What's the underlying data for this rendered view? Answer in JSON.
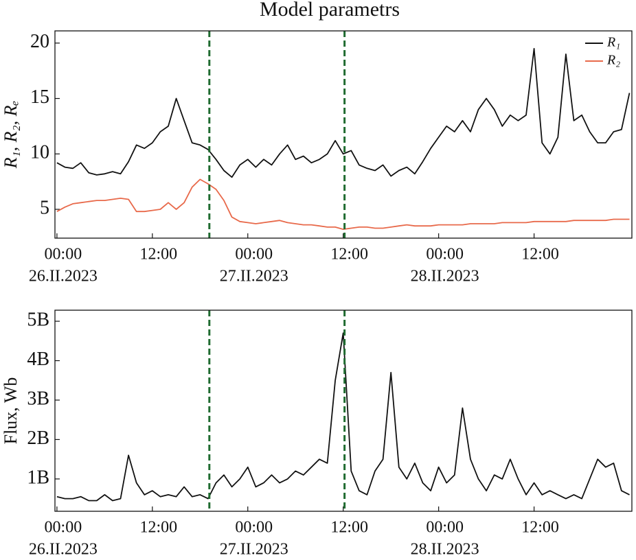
{
  "title": "Model parametrs",
  "chart_data": [
    {
      "type": "line",
      "ylabel": "R₁, R₂, Rₑ",
      "legend": "upper right",
      "xlim": [
        "2023-02-25T23:45",
        "2023-03-01T00:18"
      ],
      "xticks": [
        {
          "value": "2023-02-26T00:00",
          "label": "00:00",
          "date": "26.II.2023"
        },
        {
          "value": "2023-02-26T12:00",
          "label": "12:00"
        },
        {
          "value": "2023-02-27T00:00",
          "label": "00:00",
          "date": "27.II.2023"
        },
        {
          "value": "2023-02-27T12:00",
          "label": "12:00"
        },
        {
          "value": "2023-02-28T00:00",
          "label": "00:00",
          "date": "28.II.2023"
        },
        {
          "value": "2023-02-28T12:00",
          "label": "12:00"
        }
      ],
      "ylim": [
        2.4,
        21.1
      ],
      "yticks": [
        5,
        10,
        15,
        20
      ],
      "vlines": [
        {
          "value": "2023-02-26T19:10",
          "color": "#1f6b30"
        },
        {
          "value": "2023-02-27T12:10",
          "color": "#1f6b30"
        }
      ],
      "x": [
        "2023-02-26T00:00",
        "2023-02-26T01:00",
        "2023-02-26T02:00",
        "2023-02-26T03:00",
        "2023-02-26T04:00",
        "2023-02-26T05:00",
        "2023-02-26T06:00",
        "2023-02-26T07:00",
        "2023-02-26T08:00",
        "2023-02-26T09:00",
        "2023-02-26T10:00",
        "2023-02-26T11:00",
        "2023-02-26T12:00",
        "2023-02-26T13:00",
        "2023-02-26T14:00",
        "2023-02-26T15:00",
        "2023-02-26T16:00",
        "2023-02-26T17:00",
        "2023-02-26T18:00",
        "2023-02-26T19:00",
        "2023-02-26T20:00",
        "2023-02-26T21:00",
        "2023-02-26T22:00",
        "2023-02-26T23:00",
        "2023-02-27T00:00",
        "2023-02-27T01:00",
        "2023-02-27T02:00",
        "2023-02-27T03:00",
        "2023-02-27T04:00",
        "2023-02-27T05:00",
        "2023-02-27T06:00",
        "2023-02-27T07:00",
        "2023-02-27T08:00",
        "2023-02-27T09:00",
        "2023-02-27T10:00",
        "2023-02-27T11:00",
        "2023-02-27T12:00",
        "2023-02-27T13:00",
        "2023-02-27T14:00",
        "2023-02-27T15:00",
        "2023-02-27T16:00",
        "2023-02-27T17:00",
        "2023-02-27T18:00",
        "2023-02-27T19:00",
        "2023-02-27T20:00",
        "2023-02-27T21:00",
        "2023-02-27T22:00",
        "2023-02-27T23:00",
        "2023-02-28T00:00",
        "2023-02-28T01:00",
        "2023-02-28T02:00",
        "2023-02-28T03:00",
        "2023-02-28T04:00",
        "2023-02-28T05:00",
        "2023-02-28T06:00",
        "2023-02-28T07:00",
        "2023-02-28T08:00",
        "2023-02-28T09:00",
        "2023-02-28T10:00",
        "2023-02-28T11:00",
        "2023-02-28T12:00",
        "2023-02-28T13:00",
        "2023-02-28T14:00",
        "2023-02-28T15:00",
        "2023-02-28T16:00",
        "2023-02-28T17:00",
        "2023-02-28T18:00",
        "2023-02-28T19:00",
        "2023-02-28T20:00",
        "2023-02-28T21:00",
        "2023-02-28T22:00",
        "2023-02-28T23:00",
        "2023-03-01T00:00"
      ],
      "series": [
        {
          "name": "R₁",
          "color": "#111111",
          "values": [
            9.2,
            8.8,
            8.7,
            9.2,
            8.3,
            8.1,
            8.2,
            8.4,
            8.2,
            9.3,
            10.8,
            10.5,
            11.0,
            12.0,
            12.5,
            15.0,
            13.0,
            11.0,
            10.8,
            10.4,
            9.5,
            8.5,
            7.9,
            9.0,
            9.5,
            8.8,
            9.5,
            9.0,
            10.0,
            10.8,
            9.5,
            9.8,
            9.2,
            9.5,
            10.0,
            11.2,
            10.0,
            10.3,
            9.0,
            8.7,
            8.5,
            9.0,
            8.0,
            8.5,
            8.8,
            8.2,
            9.3,
            10.5,
            11.5,
            12.5,
            12.0,
            13.0,
            12.0,
            14.0,
            15.0,
            14.0,
            12.5,
            13.5,
            13.0,
            13.5,
            19.5,
            11.0,
            10.0,
            11.5,
            19.0,
            13.0,
            13.5,
            12.0,
            11.0,
            11.0,
            12.0,
            12.2,
            15.5
          ]
        },
        {
          "name": "R₂",
          "color": "#e8694a",
          "values": [
            4.8,
            5.2,
            5.5,
            5.6,
            5.7,
            5.8,
            5.8,
            5.9,
            6.0,
            5.9,
            4.8,
            4.8,
            4.9,
            5.0,
            5.6,
            5.0,
            5.6,
            7.0,
            7.7,
            7.3,
            6.8,
            5.8,
            4.3,
            3.9,
            3.8,
            3.7,
            3.8,
            3.9,
            4.0,
            3.8,
            3.7,
            3.6,
            3.6,
            3.5,
            3.4,
            3.4,
            3.2,
            3.3,
            3.4,
            3.4,
            3.3,
            3.3,
            3.4,
            3.5,
            3.6,
            3.5,
            3.5,
            3.5,
            3.6,
            3.6,
            3.6,
            3.6,
            3.7,
            3.7,
            3.7,
            3.7,
            3.8,
            3.8,
            3.8,
            3.8,
            3.9,
            3.9,
            3.9,
            3.9,
            3.9,
            4.0,
            4.0,
            4.0,
            4.0,
            4.0,
            4.1,
            4.1,
            4.1
          ]
        }
      ]
    },
    {
      "type": "line",
      "ylabel": "Flux, Wb",
      "color": "#111111",
      "xlim": [
        "2023-02-25T23:45",
        "2023-03-01T00:18"
      ],
      "xticks": [
        {
          "value": "2023-02-26T00:00",
          "label": "00:00",
          "date": "26.II.2023"
        },
        {
          "value": "2023-02-26T12:00",
          "label": "12:00"
        },
        {
          "value": "2023-02-27T00:00",
          "label": "00:00",
          "date": "27.II.2023"
        },
        {
          "value": "2023-02-27T12:00",
          "label": "12:00"
        },
        {
          "value": "2023-02-28T00:00",
          "label": "00:00",
          "date": "28.II.2023"
        },
        {
          "value": "2023-02-28T12:00",
          "label": "12:00"
        }
      ],
      "ylim": [
        180000000,
        5280000000
      ],
      "yticks": [
        {
          "value": 1000000000,
          "label": "1B"
        },
        {
          "value": 2000000000,
          "label": "2B"
        },
        {
          "value": 3000000000,
          "label": "3B"
        },
        {
          "value": 4000000000,
          "label": "4B"
        },
        {
          "value": 5000000000,
          "label": "5B"
        }
      ],
      "vlines": [
        {
          "value": "2023-02-26T19:10",
          "color": "#1f6b30"
        },
        {
          "value": "2023-02-27T12:10",
          "color": "#1f6b30"
        }
      ],
      "x": [
        "2023-02-26T00:00",
        "2023-02-26T01:00",
        "2023-02-26T02:00",
        "2023-02-26T03:00",
        "2023-02-26T04:00",
        "2023-02-26T05:00",
        "2023-02-26T06:00",
        "2023-02-26T07:00",
        "2023-02-26T08:00",
        "2023-02-26T09:00",
        "2023-02-26T10:00",
        "2023-02-26T11:00",
        "2023-02-26T12:00",
        "2023-02-26T13:00",
        "2023-02-26T14:00",
        "2023-02-26T15:00",
        "2023-02-26T16:00",
        "2023-02-26T17:00",
        "2023-02-26T18:00",
        "2023-02-26T19:00",
        "2023-02-26T20:00",
        "2023-02-26T21:00",
        "2023-02-26T22:00",
        "2023-02-26T23:00",
        "2023-02-27T00:00",
        "2023-02-27T01:00",
        "2023-02-27T02:00",
        "2023-02-27T03:00",
        "2023-02-27T04:00",
        "2023-02-27T05:00",
        "2023-02-27T06:00",
        "2023-02-27T07:00",
        "2023-02-27T08:00",
        "2023-02-27T09:00",
        "2023-02-27T10:00",
        "2023-02-27T11:00",
        "2023-02-27T12:00",
        "2023-02-27T13:00",
        "2023-02-27T14:00",
        "2023-02-27T15:00",
        "2023-02-27T16:00",
        "2023-02-27T17:00",
        "2023-02-27T18:00",
        "2023-02-27T19:00",
        "2023-02-27T20:00",
        "2023-02-27T21:00",
        "2023-02-27T22:00",
        "2023-02-27T23:00",
        "2023-02-28T00:00",
        "2023-02-28T01:00",
        "2023-02-28T02:00",
        "2023-02-28T03:00",
        "2023-02-28T04:00",
        "2023-02-28T05:00",
        "2023-02-28T06:00",
        "2023-02-28T07:00",
        "2023-02-28T08:00",
        "2023-02-28T09:00",
        "2023-02-28T10:00",
        "2023-02-28T11:00",
        "2023-02-28T12:00",
        "2023-02-28T13:00",
        "2023-02-28T14:00",
        "2023-02-28T15:00",
        "2023-02-28T16:00",
        "2023-02-28T17:00",
        "2023-02-28T18:00",
        "2023-02-28T19:00",
        "2023-02-28T20:00",
        "2023-02-28T21:00",
        "2023-02-28T22:00",
        "2023-02-28T23:00",
        "2023-03-01T00:00"
      ],
      "values": [
        550000000,
        500000000,
        500000000,
        550000000,
        450000000,
        450000000,
        600000000,
        450000000,
        500000000,
        1600000000,
        900000000,
        600000000,
        700000000,
        550000000,
        600000000,
        550000000,
        800000000,
        550000000,
        600000000,
        500000000,
        900000000,
        1100000000,
        800000000,
        1000000000,
        1300000000,
        800000000,
        900000000,
        1100000000,
        900000000,
        1000000000,
        1200000000,
        1100000000,
        1300000000,
        1500000000,
        1400000000,
        3500000000,
        4700000000,
        1200000000,
        700000000,
        600000000,
        1200000000,
        1500000000,
        3700000000,
        1300000000,
        1000000000,
        1400000000,
        900000000,
        700000000,
        1300000000,
        900000000,
        1100000000,
        2800000000,
        1500000000,
        1000000000,
        700000000,
        1100000000,
        1000000000,
        1500000000,
        1000000000,
        600000000,
        900000000,
        600000000,
        700000000,
        600000000,
        500000000,
        600000000,
        500000000,
        1000000000,
        1500000000,
        1300000000,
        1400000000,
        700000000,
        600000000
      ]
    }
  ]
}
